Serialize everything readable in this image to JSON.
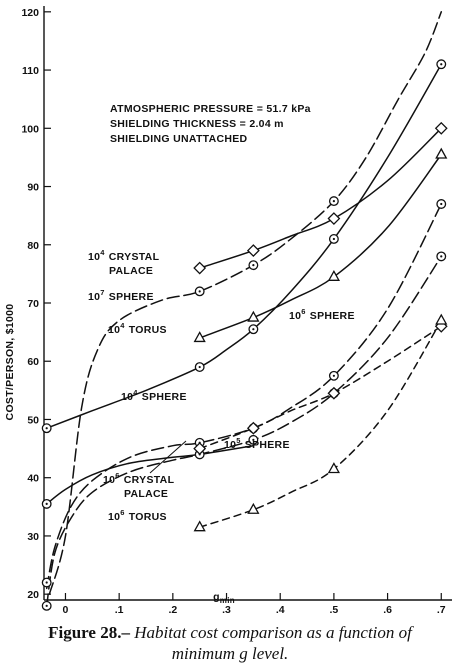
{
  "chart_data": {
    "type": "line",
    "xlabel": "g",
    "xlabel_sub": "min",
    "ylabel": "COST/PERSON, $1000",
    "xlim": [
      -0.04,
      0.72
    ],
    "ylim": [
      19,
      121
    ],
    "x_ticks": [
      "0",
      ".1",
      ".2",
      ".3",
      ".4",
      ".5",
      ".6",
      ".7"
    ],
    "x_tick_values": [
      0,
      0.1,
      0.2,
      0.3,
      0.4,
      0.5,
      0.6,
      0.7
    ],
    "y_ticks": [
      "20",
      "30",
      "40",
      "50",
      "60",
      "70",
      "80",
      "90",
      "100",
      "110",
      "120"
    ],
    "y_tick_values": [
      20,
      30,
      40,
      50,
      60,
      70,
      80,
      90,
      100,
      110,
      120
    ],
    "notes": [
      "ATMOSPHERIC PRESSURE = 51.7 kPa",
      "SHIELDING THICKNESS = 2.04 m",
      "SHIELDING UNATTACHED"
    ],
    "series": [
      {
        "key": "s104crystal",
        "label": "10⁴ CRYSTAL PALACE",
        "dash": "solid",
        "marker": "diamond",
        "points": [
          [
            0.25,
            76
          ],
          [
            0.35,
            79
          ],
          [
            0.5,
            84.5
          ],
          [
            0.7,
            100
          ]
        ],
        "curve": [
          [
            0.25,
            76
          ],
          [
            0.35,
            79
          ],
          [
            0.42,
            81.5
          ],
          [
            0.5,
            84.5
          ],
          [
            0.6,
            91
          ],
          [
            0.7,
            100
          ]
        ]
      },
      {
        "key": "s107sphere",
        "label": "10⁷ SPHERE",
        "dash": "long",
        "marker": "none",
        "points": [],
        "curve": [
          [
            -0.03,
            20
          ],
          [
            0,
            30
          ],
          [
            0.03,
            52
          ],
          [
            0.06,
            62
          ],
          [
            0.1,
            67
          ],
          [
            0.18,
            70.5
          ],
          [
            0.25,
            72
          ],
          [
            0.35,
            76.5
          ],
          [
            0.42,
            81
          ],
          [
            0.5,
            87.5
          ],
          [
            0.56,
            95
          ],
          [
            0.62,
            105
          ],
          [
            0.67,
            113
          ],
          [
            0.7,
            120
          ]
        ]
      },
      {
        "key": "s107sphere_marks",
        "label": "",
        "dash": "none",
        "marker": "circle",
        "points": [
          [
            0.25,
            72
          ],
          [
            0.35,
            76.5
          ],
          [
            0.5,
            87.5
          ]
        ],
        "curve": []
      },
      {
        "key": "s104torus",
        "label": "10⁴ TORUS",
        "dash": "solid",
        "marker": "triangle",
        "points": [
          [
            0.25,
            64
          ],
          [
            0.35,
            67.5
          ],
          [
            0.5,
            74.5
          ],
          [
            0.7,
            95.5
          ]
        ],
        "curve": [
          [
            0.25,
            64
          ],
          [
            0.35,
            67.5
          ],
          [
            0.42,
            70.5
          ],
          [
            0.5,
            74.5
          ],
          [
            0.6,
            83
          ],
          [
            0.7,
            95.5
          ]
        ]
      },
      {
        "key": "s104sphere",
        "label": "10⁴ SPHERE",
        "dash": "solid",
        "marker": "circle",
        "points": [
          [
            -0.035,
            48.5
          ],
          [
            0.25,
            59
          ],
          [
            0.35,
            65.5
          ],
          [
            0.5,
            81
          ],
          [
            0.7,
            111
          ]
        ],
        "curve": [
          [
            -0.035,
            48.5
          ],
          [
            0.05,
            51.5
          ],
          [
            0.15,
            55
          ],
          [
            0.25,
            59
          ],
          [
            0.3,
            62
          ],
          [
            0.35,
            65.5
          ],
          [
            0.42,
            72
          ],
          [
            0.5,
            81
          ],
          [
            0.6,
            95
          ],
          [
            0.7,
            111
          ]
        ]
      },
      {
        "key": "s106sphere",
        "label": "10⁶ SPHERE",
        "dash": "long",
        "marker": "circle",
        "points": [
          [
            0.25,
            46
          ],
          [
            0.35,
            48.5
          ],
          [
            0.5,
            57.5
          ],
          [
            0.7,
            87
          ]
        ],
        "curve": [
          [
            -0.035,
            21
          ],
          [
            -0.02,
            28
          ],
          [
            0.01,
            35
          ],
          [
            0.05,
            39.5
          ],
          [
            0.12,
            43.5
          ],
          [
            0.2,
            45.5
          ],
          [
            0.25,
            46
          ],
          [
            0.35,
            48.5
          ],
          [
            0.42,
            52
          ],
          [
            0.5,
            57.5
          ],
          [
            0.6,
            69
          ],
          [
            0.7,
            87
          ]
        ]
      },
      {
        "key": "s105sphere",
        "label": "10⁵ SPHERE",
        "dash": "long",
        "marker": "circle",
        "points": [
          [
            -0.035,
            22
          ],
          [
            -0.035,
            18
          ],
          [
            0.25,
            44
          ],
          [
            0.35,
            46.5
          ],
          [
            0.5,
            54.5
          ],
          [
            0.7,
            78
          ]
        ],
        "curve": [
          [
            -0.035,
            18
          ],
          [
            -0.02,
            27
          ],
          [
            0.01,
            33
          ],
          [
            0.05,
            37.5
          ],
          [
            0.12,
            41
          ],
          [
            0.2,
            43
          ],
          [
            0.25,
            44
          ],
          [
            0.35,
            46.5
          ],
          [
            0.42,
            49.5
          ],
          [
            0.5,
            54.5
          ],
          [
            0.6,
            64
          ],
          [
            0.7,
            78
          ]
        ]
      },
      {
        "key": "s106crystal",
        "label": "10⁶ CRYSTAL PALACE",
        "dash": "solid",
        "marker": "circle",
        "points": [
          [
            -0.035,
            35.5
          ]
        ],
        "curve": [
          [
            -0.035,
            35.5
          ],
          [
            0,
            38
          ],
          [
            0.05,
            40.5
          ],
          [
            0.12,
            42.5
          ],
          [
            0.2,
            43.5
          ],
          [
            0.25,
            44
          ],
          [
            0.35,
            45.5
          ]
        ]
      },
      {
        "key": "s106crystal_dash",
        "label": "",
        "dash": "medium",
        "marker": "diamond",
        "points": [
          [
            0.25,
            45
          ],
          [
            0.35,
            48.5
          ],
          [
            0.5,
            54.5
          ],
          [
            0.7,
            66
          ]
        ],
        "curve": [
          [
            0.25,
            45
          ],
          [
            0.35,
            48.5
          ],
          [
            0.42,
            51.5
          ],
          [
            0.5,
            54.5
          ],
          [
            0.6,
            60
          ],
          [
            0.7,
            66
          ]
        ]
      },
      {
        "key": "s106torus",
        "label": "10⁶ TORUS",
        "dash": "medium",
        "marker": "triangle",
        "points": [
          [
            0.25,
            31.5
          ],
          [
            0.35,
            34.5
          ],
          [
            0.5,
            41.5
          ],
          [
            0.7,
            67
          ]
        ],
        "curve": [
          [
            0.25,
            31.5
          ],
          [
            0.35,
            34.5
          ],
          [
            0.42,
            37.5
          ],
          [
            0.5,
            41.5
          ],
          [
            0.6,
            51.5
          ],
          [
            0.7,
            67
          ]
        ]
      }
    ],
    "labels": [
      {
        "key": "l1",
        "exp": "4",
        "text": "CRYSTAL",
        "line2": "PALACE"
      },
      {
        "key": "l2",
        "exp": "7",
        "text": "SPHERE"
      },
      {
        "key": "l3",
        "exp": "4",
        "text": "TORUS"
      },
      {
        "key": "l4",
        "exp": "4",
        "text": "SPHERE"
      },
      {
        "key": "l5",
        "exp": "6",
        "text": "SPHERE"
      },
      {
        "key": "l6",
        "exp": "5",
        "text": "SPHERE"
      },
      {
        "key": "l7",
        "exp": "6",
        "text": "CRYSTAL",
        "line2": "PALACE"
      },
      {
        "key": "l8",
        "exp": "6",
        "text": "TORUS"
      }
    ]
  },
  "caption": {
    "lead": "Figure 28.–",
    "title_part1": "Habitat cost comparison as a function of",
    "title_part2": "minimum g level."
  }
}
